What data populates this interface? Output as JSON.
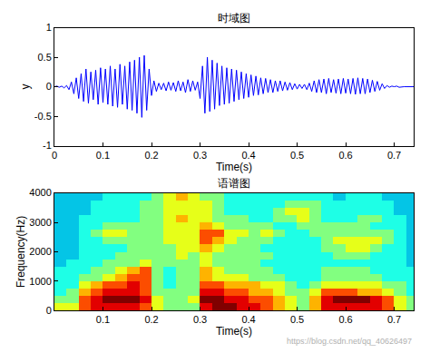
{
  "chart_data": [
    {
      "type": "line",
      "title": "时域图",
      "xlabel": "Time(s)",
      "ylabel": "y",
      "color": "#0000ff",
      "x": [
        0,
        0.005,
        0.01,
        0.015,
        0.02,
        0.025,
        0.03,
        0.035,
        0.04,
        0.045,
        0.05,
        0.055,
        0.06,
        0.065,
        0.07,
        0.075,
        0.08,
        0.085,
        0.09,
        0.095,
        0.1,
        0.105,
        0.11,
        0.115,
        0.12,
        0.125,
        0.13,
        0.135,
        0.14,
        0.145,
        0.15,
        0.155,
        0.16,
        0.165,
        0.17,
        0.175,
        0.18,
        0.185,
        0.19,
        0.195,
        0.2,
        0.205,
        0.21,
        0.215,
        0.22,
        0.225,
        0.23,
        0.235,
        0.24,
        0.245,
        0.25,
        0.255,
        0.26,
        0.265,
        0.27,
        0.275,
        0.28,
        0.285,
        0.29,
        0.295,
        0.3,
        0.305,
        0.31,
        0.315,
        0.32,
        0.325,
        0.33,
        0.335,
        0.34,
        0.345,
        0.35,
        0.355,
        0.36,
        0.365,
        0.37,
        0.375,
        0.38,
        0.385,
        0.39,
        0.395,
        0.4,
        0.405,
        0.41,
        0.415,
        0.42,
        0.425,
        0.43,
        0.435,
        0.44,
        0.445,
        0.45,
        0.455,
        0.46,
        0.465,
        0.47,
        0.475,
        0.48,
        0.485,
        0.49,
        0.495,
        0.5,
        0.505,
        0.51,
        0.515,
        0.52,
        0.525,
        0.53,
        0.535,
        0.54,
        0.545,
        0.55,
        0.555,
        0.56,
        0.565,
        0.57,
        0.575,
        0.58,
        0.585,
        0.59,
        0.595,
        0.6,
        0.605,
        0.61,
        0.615,
        0.62,
        0.625,
        0.63,
        0.635,
        0.64,
        0.645,
        0.65,
        0.655,
        0.66,
        0.665,
        0.67,
        0.675,
        0.68,
        0.685,
        0.69,
        0.695,
        0.7,
        0.705,
        0.71,
        0.715,
        0.72,
        0.725,
        0.73,
        0.735,
        0.74
      ],
      "values": [
        0,
        0.01,
        -0.01,
        0.01,
        -0.02,
        0.02,
        -0.05,
        0.08,
        -0.12,
        0.15,
        -0.2,
        0.22,
        -0.25,
        0.3,
        -0.28,
        0.25,
        -0.22,
        0.28,
        -0.3,
        0.32,
        -0.27,
        0.3,
        -0.3,
        0.35,
        -0.33,
        0.3,
        -0.35,
        0.38,
        -0.3,
        0.35,
        -0.38,
        0.42,
        -0.4,
        0.45,
        -0.45,
        0.5,
        -0.52,
        0.53,
        -0.4,
        0.3,
        -0.15,
        0.1,
        -0.08,
        0.06,
        -0.05,
        0.06,
        -0.07,
        0.08,
        -0.06,
        0.07,
        -0.08,
        0.1,
        -0.07,
        0.08,
        -0.1,
        0.12,
        -0.08,
        0.1,
        -0.06,
        0.08,
        -0.2,
        0.35,
        -0.45,
        0.5,
        -0.42,
        0.45,
        -0.38,
        0.4,
        -0.32,
        0.35,
        -0.3,
        0.32,
        -0.28,
        0.3,
        -0.25,
        0.28,
        -0.22,
        0.25,
        -0.2,
        0.22,
        -0.18,
        0.2,
        -0.15,
        0.18,
        -0.14,
        0.15,
        -0.12,
        0.14,
        -0.1,
        0.12,
        -0.1,
        0.1,
        -0.08,
        0.1,
        -0.07,
        0.08,
        -0.06,
        0.07,
        -0.05,
        0.05,
        -0.04,
        0.04,
        -0.03,
        0.04,
        -0.05,
        0.06,
        -0.08,
        0.1,
        -0.1,
        0.12,
        -0.1,
        0.13,
        -0.12,
        0.14,
        -0.1,
        0.12,
        -0.11,
        0.13,
        -0.12,
        0.14,
        -0.11,
        0.13,
        -0.12,
        0.14,
        -0.13,
        0.15,
        -0.12,
        0.14,
        -0.12,
        0.13,
        -0.1,
        0.11,
        -0.08,
        0.09,
        -0.06,
        0.05,
        -0.03,
        0.02,
        -0.01,
        0.01,
        0,
        0.01,
        -0.01,
        0,
        0,
        0,
        0,
        0,
        0
      ],
      "xlim": [
        0,
        0.74
      ],
      "xticks": [
        0,
        0.1,
        0.2,
        0.3,
        0.4,
        0.5,
        0.6,
        0.7
      ],
      "ylim": [
        -1,
        1
      ],
      "yticks": [
        -1,
        -0.5,
        0,
        0.5,
        1
      ],
      "grid": false
    },
    {
      "type": "heatmap",
      "title": "语谱图",
      "xlabel": "Time(s)",
      "ylabel": "Frequency(Hz)",
      "watermark": "https://blog.csdn.net/qq_40626497",
      "x": [
        0.0125,
        0.0375,
        0.0625,
        0.0875,
        0.1125,
        0.1375,
        0.1625,
        0.1875,
        0.2125,
        0.2375,
        0.2625,
        0.2875,
        0.3125,
        0.3375,
        0.3625,
        0.3875,
        0.4125,
        0.4375,
        0.4625,
        0.4875,
        0.5125,
        0.5375,
        0.5625,
        0.5875,
        0.6125,
        0.6375,
        0.6625,
        0.6875,
        0.7125,
        0.7375
      ],
      "y": [
        125,
        375,
        625,
        875,
        1125,
        1375,
        1625,
        1875,
        2125,
        2375,
        2625,
        2875,
        3125,
        3375,
        3625,
        3875
      ],
      "z": [
        [
          6,
          6,
          8,
          9,
          9,
          9,
          9,
          8,
          6,
          5,
          5,
          5,
          9,
          10,
          10,
          9,
          9,
          8,
          7,
          6,
          5,
          7,
          9,
          9,
          9,
          9,
          9,
          8,
          6,
          5
        ],
        [
          5,
          5,
          8,
          9,
          10,
          10,
          10,
          9,
          6,
          5,
          5,
          6,
          10,
          10,
          9,
          9,
          8,
          8,
          7,
          6,
          5,
          7,
          9,
          10,
          10,
          10,
          9,
          8,
          6,
          5
        ],
        [
          4,
          5,
          7,
          8,
          9,
          9,
          9,
          8,
          5,
          5,
          5,
          5,
          9,
          9,
          8,
          8,
          7,
          7,
          6,
          5,
          5,
          6,
          8,
          8,
          8,
          7,
          7,
          6,
          5,
          4
        ],
        [
          4,
          4,
          6,
          7,
          8,
          8,
          9,
          8,
          5,
          4,
          5,
          5,
          8,
          8,
          7,
          7,
          7,
          6,
          6,
          5,
          4,
          5,
          6,
          6,
          6,
          6,
          6,
          5,
          5,
          4
        ],
        [
          4,
          4,
          5,
          5,
          6,
          7,
          8,
          8,
          5,
          4,
          5,
          5,
          7,
          6,
          6,
          6,
          5,
          5,
          5,
          4,
          4,
          4,
          5,
          5,
          5,
          5,
          5,
          4,
          4,
          4
        ],
        [
          4,
          4,
          4,
          5,
          5,
          6,
          7,
          8,
          5,
          4,
          5,
          5,
          7,
          6,
          5,
          5,
          5,
          5,
          4,
          4,
          4,
          4,
          5,
          5,
          5,
          5,
          4,
          4,
          4,
          4
        ],
        [
          3,
          4,
          4,
          4,
          5,
          5,
          5,
          6,
          5,
          5,
          5,
          5,
          6,
          5,
          5,
          5,
          5,
          4,
          4,
          4,
          4,
          4,
          4,
          4,
          4,
          4,
          4,
          4,
          4,
          3
        ],
        [
          3,
          3,
          4,
          4,
          4,
          5,
          5,
          5,
          5,
          5,
          6,
          5,
          6,
          5,
          5,
          5,
          5,
          5,
          4,
          4,
          4,
          4,
          4,
          5,
          5,
          5,
          4,
          4,
          4,
          3
        ],
        [
          3,
          3,
          4,
          4,
          4,
          4,
          5,
          5,
          5,
          5,
          6,
          6,
          7,
          6,
          5,
          5,
          5,
          4,
          4,
          4,
          4,
          4,
          5,
          5,
          6,
          6,
          5,
          4,
          4,
          3
        ],
        [
          3,
          3,
          4,
          4,
          5,
          5,
          5,
          5,
          5,
          6,
          6,
          6,
          8,
          7,
          6,
          5,
          5,
          5,
          4,
          4,
          4,
          4,
          5,
          6,
          6,
          6,
          6,
          5,
          4,
          3
        ],
        [
          3,
          3,
          4,
          5,
          6,
          6,
          5,
          5,
          5,
          6,
          6,
          6,
          8,
          8,
          6,
          6,
          5,
          6,
          5,
          4,
          4,
          5,
          5,
          5,
          5,
          5,
          5,
          5,
          4,
          3
        ],
        [
          3,
          3,
          4,
          4,
          5,
          5,
          5,
          5,
          5,
          6,
          6,
          6,
          7,
          6,
          5,
          5,
          5,
          5,
          4,
          4,
          5,
          5,
          5,
          5,
          5,
          5,
          4,
          4,
          4,
          3
        ],
        [
          3,
          3,
          4,
          4,
          4,
          4,
          4,
          5,
          5,
          6,
          7,
          6,
          6,
          5,
          5,
          5,
          4,
          4,
          5,
          5,
          6,
          5,
          4,
          4,
          4,
          5,
          5,
          4,
          4,
          3
        ],
        [
          3,
          3,
          3,
          4,
          4,
          4,
          4,
          5,
          5,
          6,
          6,
          6,
          6,
          5,
          4,
          4,
          4,
          4,
          5,
          6,
          6,
          5,
          4,
          4,
          4,
          4,
          4,
          4,
          3,
          3
        ],
        [
          3,
          3,
          3,
          4,
          4,
          4,
          4,
          5,
          5,
          6,
          6,
          6,
          6,
          5,
          4,
          4,
          4,
          4,
          4,
          5,
          5,
          5,
          4,
          4,
          4,
          4,
          4,
          4,
          3,
          3
        ],
        [
          3,
          3,
          3,
          3,
          4,
          4,
          4,
          4,
          5,
          6,
          7,
          6,
          5,
          5,
          4,
          4,
          4,
          4,
          4,
          4,
          4,
          4,
          4,
          3,
          4,
          4,
          4,
          3,
          3,
          3
        ]
      ],
      "zlim": [
        0,
        10
      ],
      "xlim": [
        0,
        0.74
      ],
      "xticks": [
        0.1,
        0.2,
        0.3,
        0.4,
        0.5,
        0.6,
        0.7
      ],
      "ylim": [
        0,
        4000
      ],
      "yticks": [
        0,
        1000,
        2000,
        3000,
        4000
      ]
    }
  ]
}
